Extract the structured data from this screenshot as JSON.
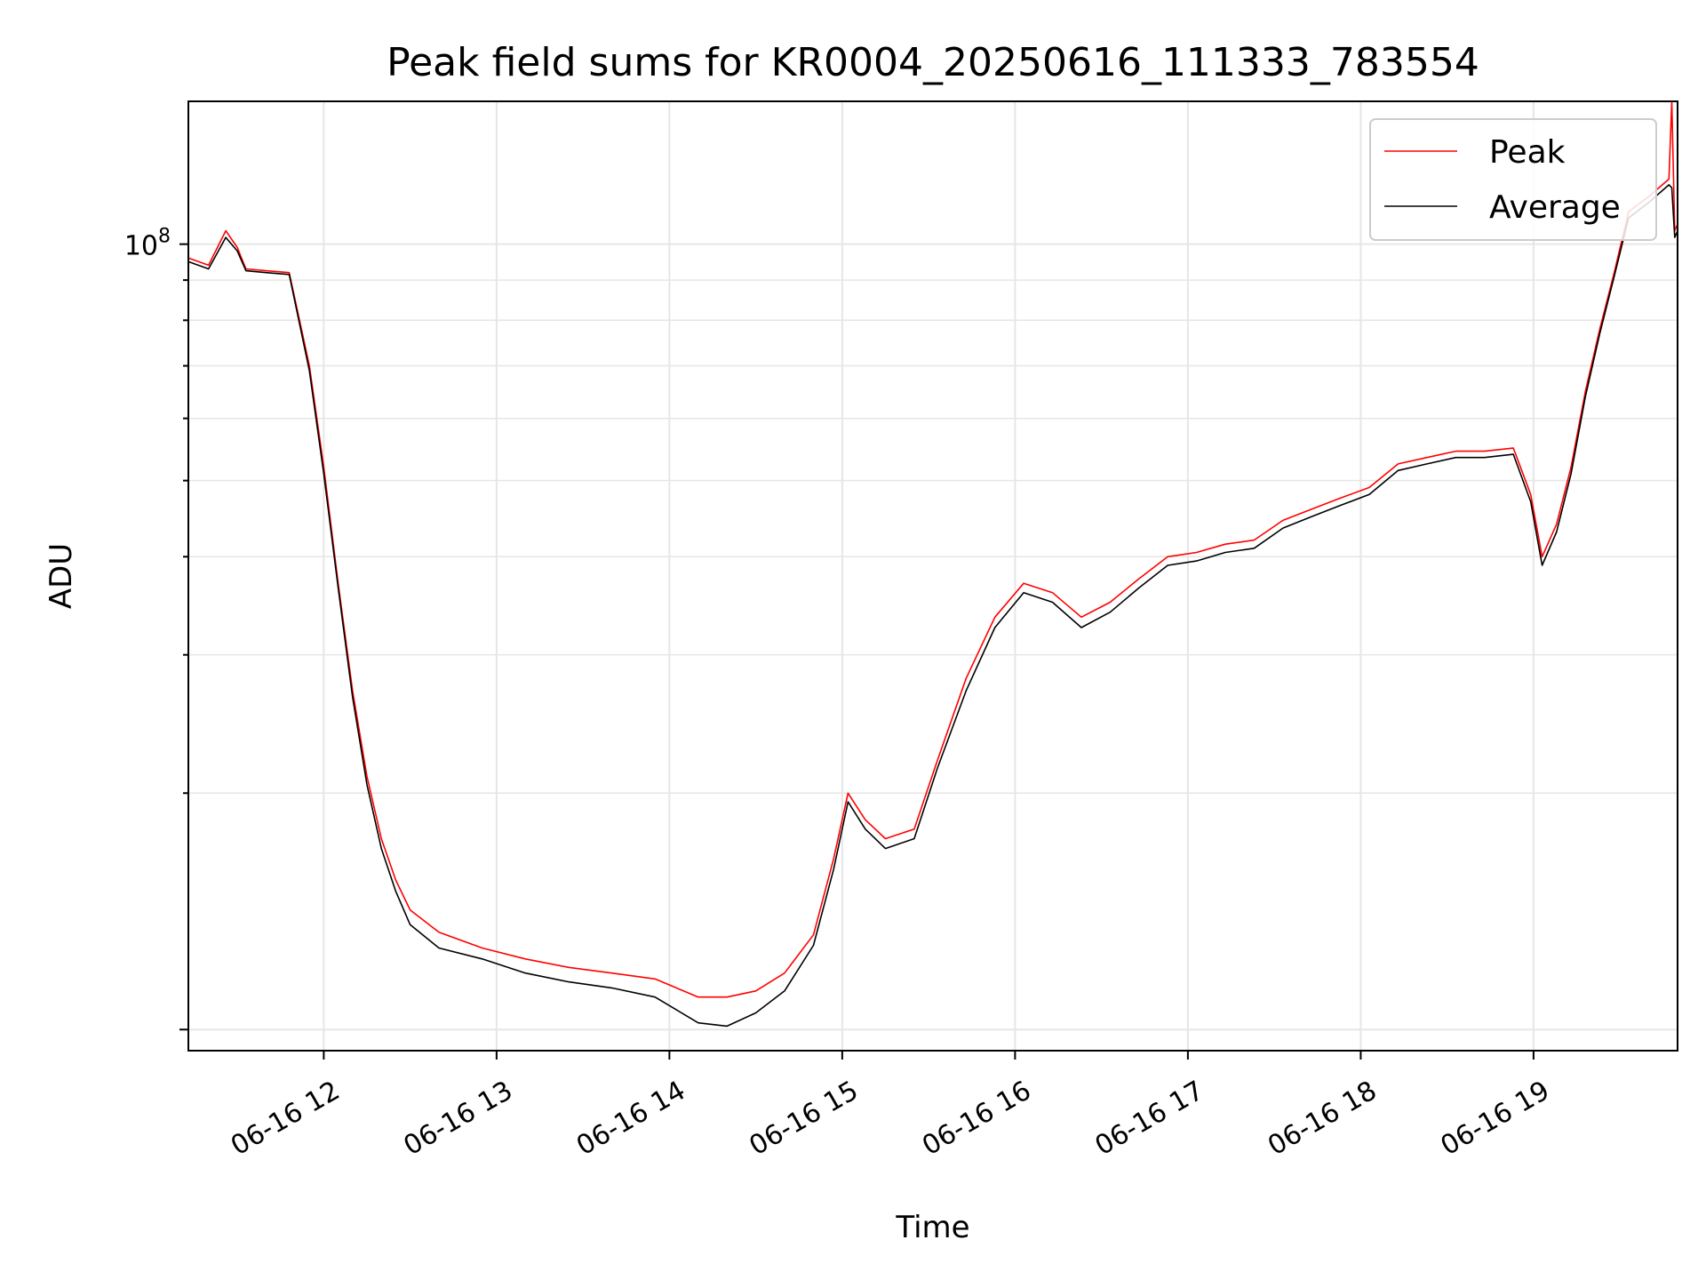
{
  "chart_data": {
    "type": "line",
    "title": "Peak field sums for KR0004_20250616_111333_783554",
    "xlabel": "Time",
    "ylabel": "ADU",
    "y_scale": "log",
    "ylim": [
      9400000,
      152000000
    ],
    "xlim": [
      "2025-06-16 11:13",
      "2025-06-16 19:50"
    ],
    "x_ticks": [
      "06-16 12",
      "06-16 13",
      "06-16 14",
      "06-16 15",
      "06-16 16",
      "06-16 17",
      "06-16 18",
      "06-16 19"
    ],
    "y_ticks": [
      {
        "value": 100000000,
        "label": "10",
        "exponent": "8"
      }
    ],
    "grid": true,
    "legend_position": "top-right",
    "colors": {
      "peak": "#ff0000",
      "average": "#000000",
      "grid": "#e6e6e6"
    },
    "series": [
      {
        "name": "Peak",
        "color": "#ff0000",
        "points": [
          [
            "2025-06-16 11:13",
            96000000
          ],
          [
            "2025-06-16 11:20",
            94000000
          ],
          [
            "2025-06-16 11:26",
            104000000
          ],
          [
            "2025-06-16 11:30",
            99000000
          ],
          [
            "2025-06-16 11:33",
            93000000
          ],
          [
            "2025-06-16 11:40",
            92500000
          ],
          [
            "2025-06-16 11:48",
            92000000
          ],
          [
            "2025-06-16 11:55",
            70000000
          ],
          [
            "2025-06-16 12:00",
            52000000
          ],
          [
            "2025-06-16 12:05",
            37000000
          ],
          [
            "2025-06-16 12:10",
            27000000
          ],
          [
            "2025-06-16 12:15",
            21000000
          ],
          [
            "2025-06-16 12:20",
            17500000
          ],
          [
            "2025-06-16 12:25",
            15500000
          ],
          [
            "2025-06-16 12:30",
            14200000
          ],
          [
            "2025-06-16 12:40",
            13300000
          ],
          [
            "2025-06-16 12:55",
            12700000
          ],
          [
            "2025-06-16 13:10",
            12300000
          ],
          [
            "2025-06-16 13:25",
            12000000
          ],
          [
            "2025-06-16 13:40",
            11800000
          ],
          [
            "2025-06-16 13:55",
            11600000
          ],
          [
            "2025-06-16 14:10",
            11000000
          ],
          [
            "2025-06-16 14:20",
            11000000
          ],
          [
            "2025-06-16 14:30",
            11200000
          ],
          [
            "2025-06-16 14:40",
            11800000
          ],
          [
            "2025-06-16 14:50",
            13200000
          ],
          [
            "2025-06-16 14:57",
            16500000
          ],
          [
            "2025-06-16 15:02",
            20000000
          ],
          [
            "2025-06-16 15:08",
            18500000
          ],
          [
            "2025-06-16 15:15",
            17500000
          ],
          [
            "2025-06-16 15:25",
            18000000
          ],
          [
            "2025-06-16 15:33",
            22000000
          ],
          [
            "2025-06-16 15:43",
            28000000
          ],
          [
            "2025-06-16 15:53",
            33500000
          ],
          [
            "2025-06-16 16:03",
            37000000
          ],
          [
            "2025-06-16 16:13",
            36000000
          ],
          [
            "2025-06-16 16:23",
            33500000
          ],
          [
            "2025-06-16 16:33",
            35000000
          ],
          [
            "2025-06-16 16:43",
            37500000
          ],
          [
            "2025-06-16 16:53",
            40000000
          ],
          [
            "2025-06-16 17:03",
            40500000
          ],
          [
            "2025-06-16 17:13",
            41500000
          ],
          [
            "2025-06-16 17:23",
            42000000
          ],
          [
            "2025-06-16 17:33",
            44500000
          ],
          [
            "2025-06-16 17:43",
            46000000
          ],
          [
            "2025-06-16 17:53",
            47500000
          ],
          [
            "2025-06-16 18:03",
            49000000
          ],
          [
            "2025-06-16 18:13",
            52500000
          ],
          [
            "2025-06-16 18:23",
            53500000
          ],
          [
            "2025-06-16 18:33",
            54500000
          ],
          [
            "2025-06-16 18:43",
            54500000
          ],
          [
            "2025-06-16 18:53",
            55000000
          ],
          [
            "2025-06-16 18:59",
            48000000
          ],
          [
            "2025-06-16 19:03",
            40000000
          ],
          [
            "2025-06-16 19:08",
            44000000
          ],
          [
            "2025-06-16 19:13",
            52000000
          ],
          [
            "2025-06-16 19:18",
            65000000
          ],
          [
            "2025-06-16 19:23",
            78000000
          ],
          [
            "2025-06-16 19:28",
            92000000
          ],
          [
            "2025-06-16 19:33",
            110000000
          ],
          [
            "2025-06-16 19:40",
            115000000
          ],
          [
            "2025-06-16 19:47",
            121000000
          ],
          [
            "2025-06-16 19:48",
            152000000
          ],
          [
            "2025-06-16 19:49",
            104000000
          ],
          [
            "2025-06-16 19:50",
            106000000
          ]
        ]
      },
      {
        "name": "Average",
        "color": "#000000",
        "points": [
          [
            "2025-06-16 11:13",
            95000000
          ],
          [
            "2025-06-16 11:20",
            93000000
          ],
          [
            "2025-06-16 11:26",
            102000000
          ],
          [
            "2025-06-16 11:30",
            98000000
          ],
          [
            "2025-06-16 11:33",
            92500000
          ],
          [
            "2025-06-16 11:40",
            92000000
          ],
          [
            "2025-06-16 11:48",
            91500000
          ],
          [
            "2025-06-16 11:55",
            69000000
          ],
          [
            "2025-06-16 12:00",
            51000000
          ],
          [
            "2025-06-16 12:05",
            36500000
          ],
          [
            "2025-06-16 12:10",
            26500000
          ],
          [
            "2025-06-16 12:15",
            20500000
          ],
          [
            "2025-06-16 12:20",
            17000000
          ],
          [
            "2025-06-16 12:25",
            15000000
          ],
          [
            "2025-06-16 12:30",
            13600000
          ],
          [
            "2025-06-16 12:40",
            12700000
          ],
          [
            "2025-06-16 12:55",
            12300000
          ],
          [
            "2025-06-16 13:10",
            11800000
          ],
          [
            "2025-06-16 13:25",
            11500000
          ],
          [
            "2025-06-16 13:40",
            11300000
          ],
          [
            "2025-06-16 13:55",
            11000000
          ],
          [
            "2025-06-16 14:10",
            10200000
          ],
          [
            "2025-06-16 14:20",
            10100000
          ],
          [
            "2025-06-16 14:30",
            10500000
          ],
          [
            "2025-06-16 14:40",
            11200000
          ],
          [
            "2025-06-16 14:50",
            12800000
          ],
          [
            "2025-06-16 14:57",
            16000000
          ],
          [
            "2025-06-16 15:02",
            19500000
          ],
          [
            "2025-06-16 15:08",
            18000000
          ],
          [
            "2025-06-16 15:15",
            17000000
          ],
          [
            "2025-06-16 15:25",
            17500000
          ],
          [
            "2025-06-16 15:33",
            21500000
          ],
          [
            "2025-06-16 15:43",
            27000000
          ],
          [
            "2025-06-16 15:53",
            32500000
          ],
          [
            "2025-06-16 16:03",
            36000000
          ],
          [
            "2025-06-16 16:13",
            35000000
          ],
          [
            "2025-06-16 16:23",
            32500000
          ],
          [
            "2025-06-16 16:33",
            34000000
          ],
          [
            "2025-06-16 16:43",
            36500000
          ],
          [
            "2025-06-16 16:53",
            39000000
          ],
          [
            "2025-06-16 17:03",
            39500000
          ],
          [
            "2025-06-16 17:13",
            40500000
          ],
          [
            "2025-06-16 17:23",
            41000000
          ],
          [
            "2025-06-16 17:33",
            43500000
          ],
          [
            "2025-06-16 17:43",
            45000000
          ],
          [
            "2025-06-16 17:53",
            46500000
          ],
          [
            "2025-06-16 18:03",
            48000000
          ],
          [
            "2025-06-16 18:13",
            51500000
          ],
          [
            "2025-06-16 18:23",
            52500000
          ],
          [
            "2025-06-16 18:33",
            53500000
          ],
          [
            "2025-06-16 18:43",
            53500000
          ],
          [
            "2025-06-16 18:53",
            54000000
          ],
          [
            "2025-06-16 18:59",
            47000000
          ],
          [
            "2025-06-16 19:03",
            39000000
          ],
          [
            "2025-06-16 19:08",
            43000000
          ],
          [
            "2025-06-16 19:13",
            51000000
          ],
          [
            "2025-06-16 19:18",
            64000000
          ],
          [
            "2025-06-16 19:23",
            77000000
          ],
          [
            "2025-06-16 19:28",
            91000000
          ],
          [
            "2025-06-16 19:33",
            108000000
          ],
          [
            "2025-06-16 19:40",
            113000000
          ],
          [
            "2025-06-16 19:47",
            119000000
          ],
          [
            "2025-06-16 19:48",
            118000000
          ],
          [
            "2025-06-16 19:49",
            102000000
          ],
          [
            "2025-06-16 19:50",
            104000000
          ]
        ]
      }
    ]
  }
}
